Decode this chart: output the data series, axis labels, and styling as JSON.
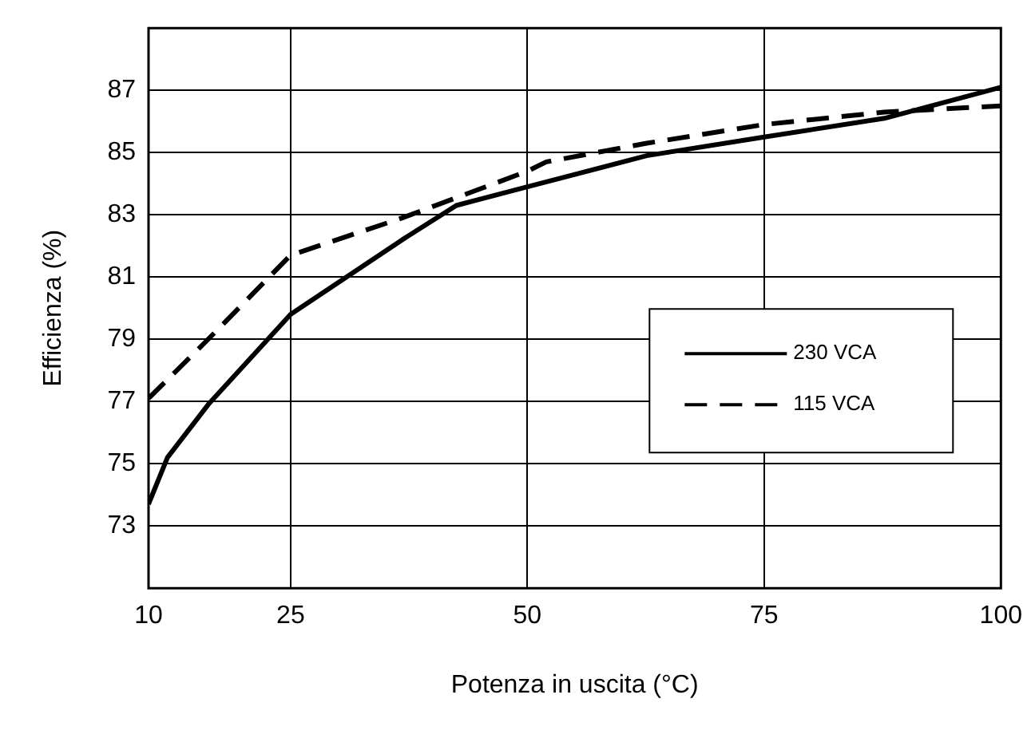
{
  "chart_data": {
    "type": "line",
    "xlabel": "Potenza in uscita (°C)",
    "ylabel": "Efficienza (%)",
    "xlim": [
      10,
      100
    ],
    "xticks": [
      10,
      25,
      50,
      75,
      100
    ],
    "ylim": [
      71,
      89
    ],
    "yticks": [
      73,
      75,
      77,
      79,
      81,
      83,
      85,
      87
    ],
    "grid": true,
    "legend": "bottom right",
    "marker": "none",
    "series": [
      {
        "name": "230 VCA",
        "color": "#000000",
        "line_style": "solid",
        "x": [
          10,
          12,
          16.3,
          25,
          36.8,
          42.5,
          50,
          62.6,
          75,
          87.7,
          100
        ],
        "values": [
          73.7,
          75.2,
          76.9,
          79.8,
          82.2,
          83.3,
          83.9,
          84.9,
          85.5,
          86.1,
          87.1
        ]
      },
      {
        "name": "115 VCA",
        "color": "#000000",
        "line_style": "dashed",
        "x": [
          10,
          16.3,
          25,
          36.8,
          50,
          52,
          62.6,
          75,
          87.7,
          100
        ],
        "values": [
          77.1,
          79.0,
          81.7,
          82.9,
          84.4,
          84.7,
          85.3,
          85.9,
          86.3,
          86.5
        ]
      }
    ]
  }
}
